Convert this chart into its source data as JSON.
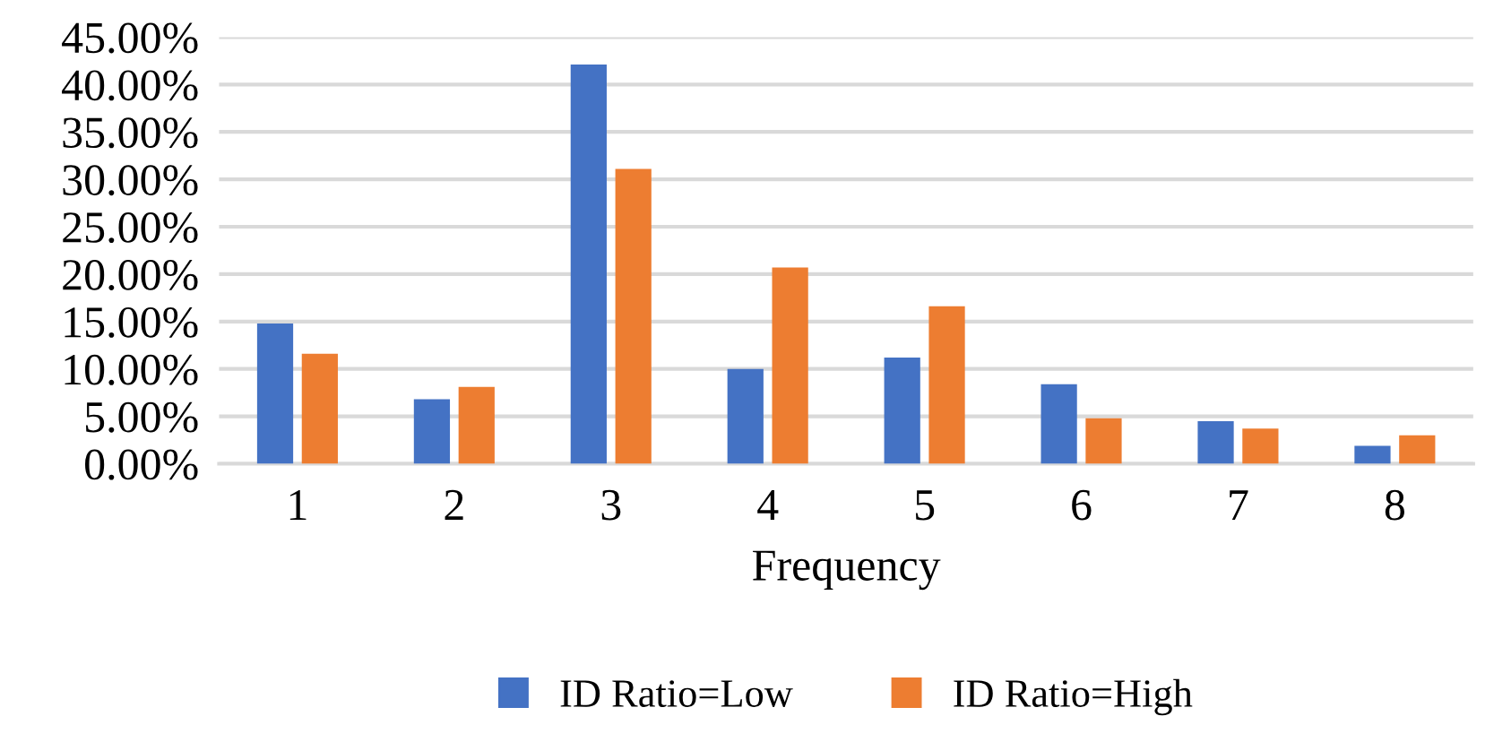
{
  "chart_data": {
    "type": "bar",
    "xlabel": "Frequency",
    "categories": [
      "1",
      "2",
      "3",
      "4",
      "5",
      "6",
      "7",
      "8"
    ],
    "series": [
      {
        "name": "ID Ratio=Low",
        "color": "#4472c4",
        "values": [
          14.8,
          6.8,
          42.1,
          10.0,
          11.2,
          8.4,
          4.5,
          1.9
        ]
      },
      {
        "name": "ID Ratio=High",
        "color": "#ed7d31",
        "values": [
          11.6,
          8.1,
          31.1,
          20.7,
          16.6,
          4.8,
          3.7,
          3.0
        ]
      }
    ],
    "ylim": [
      0,
      45
    ],
    "yticks": [
      {
        "value": 0,
        "label": "0.00%"
      },
      {
        "value": 5,
        "label": "5.00%"
      },
      {
        "value": 10,
        "label": "10.00%"
      },
      {
        "value": 15,
        "label": "15.00%"
      },
      {
        "value": 20,
        "label": "20.00%"
      },
      {
        "value": 25,
        "label": "25.00%"
      },
      {
        "value": 30,
        "label": "30.00%"
      },
      {
        "value": 35,
        "label": "35.00%"
      },
      {
        "value": 40,
        "label": "40.00%"
      },
      {
        "value": 45,
        "label": "45.00%"
      }
    ],
    "grid": "y",
    "legend": "bottom"
  }
}
